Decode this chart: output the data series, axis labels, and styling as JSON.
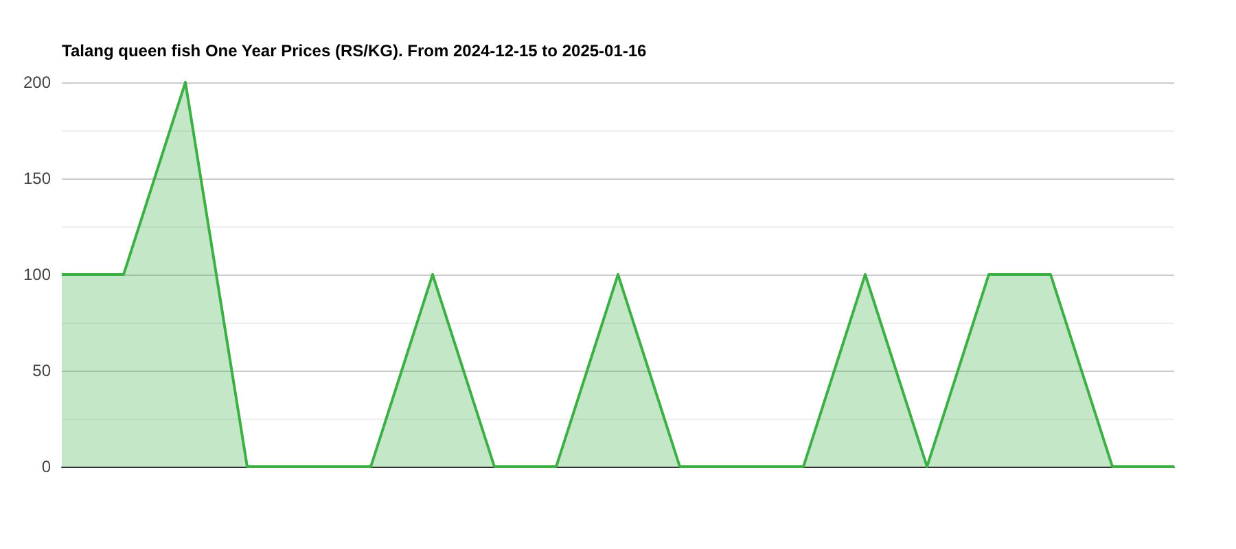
{
  "chart_data": {
    "type": "area",
    "title": "Talang queen fish One Year Prices (RS/KG). From 2024-12-15 to 2025-01-16",
    "categories": [
      null,
      null,
      null,
      null,
      null,
      null,
      null,
      null,
      null,
      null,
      null,
      null,
      null,
      null,
      null,
      null,
      null,
      null,
      null
    ],
    "series": [
      {
        "color": "#3cb044",
        "values": [
          100,
          100,
          200,
          0,
          0,
          0,
          100,
          0,
          0,
          100,
          0,
          0,
          0,
          100,
          0,
          100,
          100,
          0,
          0
        ]
      }
    ],
    "ylim": [
      0,
      200
    ],
    "yticks": [
      0,
      50,
      100,
      150,
      200
    ],
    "grid": "y"
  }
}
